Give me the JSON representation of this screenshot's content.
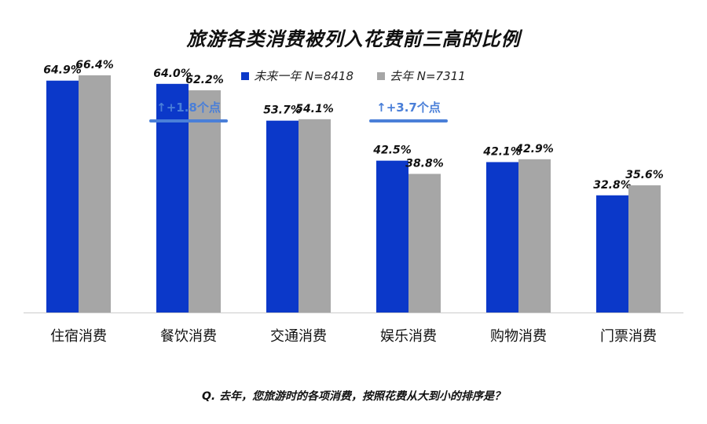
{
  "title": "旅游各类消费被列入花费前三高的比例",
  "legend": [
    {
      "label": "未来一年 N=8418",
      "color": "#0b38c9"
    },
    {
      "label": "去年 N=7311",
      "color": "#a6a6a6"
    }
  ],
  "note": "Q. 去年，您旅游时的各项消费，按照花费从大到小的排序是？",
  "annotations": [
    {
      "category": "餐饮消费",
      "text": "↑+1.8个点",
      "color": "#4a7fd8"
    },
    {
      "category": "娱乐消费",
      "text": "↑+3.7个点",
      "color": "#4a7fd8"
    }
  ],
  "chart_data": {
    "type": "bar",
    "categories": [
      "住宿消费",
      "餐饮消费",
      "交通消费",
      "娱乐消费",
      "购物消费",
      "门票消费"
    ],
    "series": [
      {
        "name": "未来一年 N=8418",
        "values": [
          64.9,
          64.0,
          53.7,
          42.5,
          42.1,
          32.8
        ],
        "labels": [
          "64.9%",
          "64.0%",
          "53.7%",
          "42.5%",
          "42.1%",
          "32.8%"
        ],
        "color": "#0b38c9"
      },
      {
        "name": "去年 N=7311",
        "values": [
          66.4,
          62.2,
          54.1,
          38.8,
          42.9,
          35.6
        ],
        "labels": [
          "66.4%",
          "62.2%",
          "54.1%",
          "38.8%",
          "42.9%",
          "35.6%"
        ],
        "color": "#a6a6a6"
      }
    ],
    "ylim": [
      0,
      100
    ],
    "xlabel": "",
    "ylabel": "",
    "grid": false,
    "legend_position": "top-center"
  }
}
